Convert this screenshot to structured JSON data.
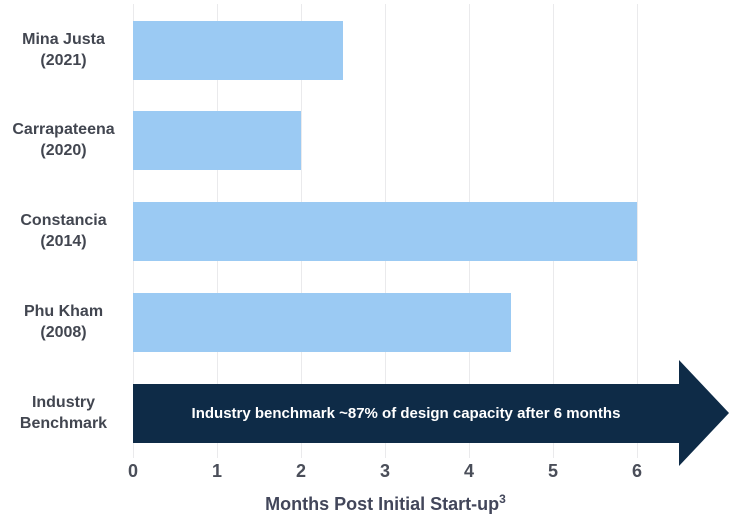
{
  "chart_data": {
    "type": "bar",
    "orientation": "horizontal",
    "title": "",
    "xlabel": "Months Post Initial Start-up",
    "xlabel_superscript": "3",
    "ylabel": "",
    "xlim": [
      0,
      6
    ],
    "xticks": [
      "0",
      "1",
      "2",
      "3",
      "4",
      "5",
      "6"
    ],
    "grid": "vertical",
    "legend": "none",
    "categories": [
      "Mina Justa (2021)",
      "Carrapateena (2020)",
      "Constancia (2014)",
      "Phu Kham (2008)",
      "Industry Benchmark"
    ],
    "rows": [
      {
        "label1": "Mina Justa",
        "label2": "(2021)",
        "value": 2.5
      },
      {
        "label1": "Carrapateena",
        "label2": "(2020)",
        "value": 2
      },
      {
        "label1": "Constancia",
        "label2": "(2014)",
        "value": 6
      },
      {
        "label1": "Phu Kham",
        "label2": "(2008)",
        "value": 4.5
      }
    ],
    "benchmark": {
      "label1": "Industry",
      "label2": "Benchmark",
      "text": "Industry benchmark ~87% of design capacity after 6 months",
      "body_extent_months": 6.5,
      "tip_extent_months": 7.1
    },
    "colors": {
      "bar_fill": "#9BCAF3",
      "arrow_fill": "#0E2B47",
      "arrow_text": "#FFFFFF",
      "label_text": "#424650",
      "tick_text": "#4A4E59",
      "axis_title_text": "#42465A",
      "gridline": "#EAEAEC"
    }
  }
}
